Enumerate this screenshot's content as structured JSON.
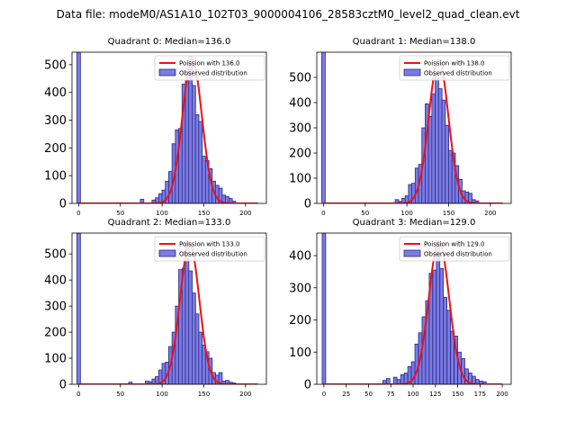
{
  "suptitle": "Data file: modeM0/AS1A10_102T03_9000004106_28583cztM0_level2_quad_clean.evt",
  "colors": {
    "bar_fill": "#7b7be6",
    "bar_edge": "#2a2a80",
    "poisson_line": "#ee1111"
  },
  "chart_data": [
    {
      "type": "bar",
      "title": "Quadrant 0: Median=136.0",
      "legend": [
        "Poission with 136.0",
        "Observed distribution"
      ],
      "legend_position": "top-right",
      "xlim": [
        -8,
        225
      ],
      "ylim": [
        0,
        545
      ],
      "xticks": [
        0,
        50,
        100,
        150,
        200
      ],
      "yticks": [
        0,
        100,
        200,
        300,
        400,
        500
      ],
      "bin_width": 4.2,
      "zero_bar": {
        "x": 0,
        "value": 545
      },
      "bins": [
        {
          "x": 76,
          "value": 15
        },
        {
          "x": 90,
          "value": 12
        },
        {
          "x": 94,
          "value": 20
        },
        {
          "x": 98,
          "value": 35
        },
        {
          "x": 102,
          "value": 48
        },
        {
          "x": 106,
          "value": 80
        },
        {
          "x": 110,
          "value": 115
        },
        {
          "x": 114,
          "value": 215
        },
        {
          "x": 118,
          "value": 265
        },
        {
          "x": 122,
          "value": 270
        },
        {
          "x": 126,
          "value": 430
        },
        {
          "x": 130,
          "value": 445
        },
        {
          "x": 134,
          "value": 530
        },
        {
          "x": 138,
          "value": 425
        },
        {
          "x": 142,
          "value": 320
        },
        {
          "x": 146,
          "value": 295
        },
        {
          "x": 150,
          "value": 170
        },
        {
          "x": 154,
          "value": 155
        },
        {
          "x": 158,
          "value": 125
        },
        {
          "x": 162,
          "value": 80
        },
        {
          "x": 166,
          "value": 65
        },
        {
          "x": 170,
          "value": 55
        },
        {
          "x": 174,
          "value": 30
        },
        {
          "x": 178,
          "value": 25
        },
        {
          "x": 182,
          "value": 18
        },
        {
          "x": 186,
          "value": 8
        }
      ],
      "poisson": {
        "lambda": 136.0,
        "peak": 520
      }
    },
    {
      "type": "bar",
      "title": "Quadrant 1: Median=138.0",
      "legend": [
        "Poission with 138.0",
        "Observed distribution"
      ],
      "legend_position": "top-right",
      "xlim": [
        -8,
        225
      ],
      "ylim": [
        0,
        600
      ],
      "xticks": [
        0,
        50,
        100,
        150,
        200
      ],
      "yticks": [
        0,
        100,
        200,
        300,
        400,
        500
      ],
      "bin_width": 4.2,
      "zero_bar": {
        "x": 0,
        "value": 600
      },
      "bins": [
        {
          "x": 88,
          "value": 15
        },
        {
          "x": 92,
          "value": 8
        },
        {
          "x": 96,
          "value": 20
        },
        {
          "x": 100,
          "value": 30
        },
        {
          "x": 104,
          "value": 75
        },
        {
          "x": 108,
          "value": 80
        },
        {
          "x": 112,
          "value": 140
        },
        {
          "x": 116,
          "value": 155
        },
        {
          "x": 120,
          "value": 300
        },
        {
          "x": 124,
          "value": 395
        },
        {
          "x": 128,
          "value": 345
        },
        {
          "x": 132,
          "value": 435
        },
        {
          "x": 136,
          "value": 515
        },
        {
          "x": 140,
          "value": 455
        },
        {
          "x": 144,
          "value": 410
        },
        {
          "x": 148,
          "value": 310
        },
        {
          "x": 152,
          "value": 210
        },
        {
          "x": 156,
          "value": 200
        },
        {
          "x": 160,
          "value": 150
        },
        {
          "x": 164,
          "value": 95
        },
        {
          "x": 168,
          "value": 50
        },
        {
          "x": 172,
          "value": 45
        },
        {
          "x": 176,
          "value": 40
        },
        {
          "x": 180,
          "value": 15
        },
        {
          "x": 184,
          "value": 10
        }
      ],
      "poisson": {
        "lambda": 138.0,
        "peak": 570
      }
    },
    {
      "type": "bar",
      "title": "Quadrant 2: Median=133.0",
      "legend": [
        "Poission with 133.0",
        "Observed distribution"
      ],
      "legend_position": "top-right",
      "xlim": [
        -8,
        225
      ],
      "ylim": [
        0,
        580
      ],
      "xticks": [
        0,
        50,
        100,
        150,
        200
      ],
      "yticks": [
        0,
        100,
        200,
        300,
        400,
        500
      ],
      "bin_width": 4.2,
      "zero_bar": {
        "x": 0,
        "value": 580
      },
      "bins": [
        {
          "x": 62,
          "value": 8
        },
        {
          "x": 82,
          "value": 12
        },
        {
          "x": 86,
          "value": 10
        },
        {
          "x": 90,
          "value": 20
        },
        {
          "x": 94,
          "value": 30
        },
        {
          "x": 98,
          "value": 55
        },
        {
          "x": 102,
          "value": 80
        },
        {
          "x": 106,
          "value": 85
        },
        {
          "x": 110,
          "value": 145
        },
        {
          "x": 114,
          "value": 200
        },
        {
          "x": 118,
          "value": 300
        },
        {
          "x": 122,
          "value": 440
        },
        {
          "x": 126,
          "value": 445
        },
        {
          "x": 130,
          "value": 550
        },
        {
          "x": 134,
          "value": 435
        },
        {
          "x": 138,
          "value": 350
        },
        {
          "x": 142,
          "value": 270
        },
        {
          "x": 146,
          "value": 200
        },
        {
          "x": 150,
          "value": 150
        },
        {
          "x": 154,
          "value": 125
        },
        {
          "x": 158,
          "value": 100
        },
        {
          "x": 162,
          "value": 45
        },
        {
          "x": 166,
          "value": 35
        },
        {
          "x": 170,
          "value": 45
        },
        {
          "x": 174,
          "value": 12
        },
        {
          "x": 178,
          "value": 15
        },
        {
          "x": 182,
          "value": 8
        },
        {
          "x": 186,
          "value": 5
        }
      ],
      "poisson": {
        "lambda": 133.0,
        "peak": 540
      }
    },
    {
      "type": "bar",
      "title": "Quadrant 3: Median=129.0",
      "legend": [
        "Poission with 129.0",
        "Observed distribution"
      ],
      "legend_position": "top-right",
      "xlim": [
        -8,
        210
      ],
      "ylim": [
        0,
        470
      ],
      "xticks": [
        0,
        25,
        50,
        75,
        100,
        125,
        150,
        175,
        200
      ],
      "yticks": [
        0,
        100,
        200,
        300,
        400
      ],
      "bin_width": 3.9,
      "zero_bar": {
        "x": 0,
        "value": 470
      },
      "bins": [
        {
          "x": 68,
          "value": 12
        },
        {
          "x": 72,
          "value": 18
        },
        {
          "x": 80,
          "value": 22
        },
        {
          "x": 84,
          "value": 15
        },
        {
          "x": 88,
          "value": 30
        },
        {
          "x": 92,
          "value": 35
        },
        {
          "x": 96,
          "value": 55
        },
        {
          "x": 100,
          "value": 70
        },
        {
          "x": 104,
          "value": 125
        },
        {
          "x": 108,
          "value": 160
        },
        {
          "x": 112,
          "value": 210
        },
        {
          "x": 116,
          "value": 260
        },
        {
          "x": 120,
          "value": 345
        },
        {
          "x": 124,
          "value": 355
        },
        {
          "x": 128,
          "value": 440
        },
        {
          "x": 132,
          "value": 360
        },
        {
          "x": 136,
          "value": 270
        },
        {
          "x": 140,
          "value": 230
        },
        {
          "x": 144,
          "value": 165
        },
        {
          "x": 148,
          "value": 150
        },
        {
          "x": 152,
          "value": 100
        },
        {
          "x": 156,
          "value": 80
        },
        {
          "x": 160,
          "value": 48
        },
        {
          "x": 164,
          "value": 35
        },
        {
          "x": 168,
          "value": 25
        },
        {
          "x": 172,
          "value": 15
        },
        {
          "x": 176,
          "value": 10
        },
        {
          "x": 180,
          "value": 8
        }
      ],
      "poisson": {
        "lambda": 129.0,
        "peak": 445
      }
    }
  ]
}
